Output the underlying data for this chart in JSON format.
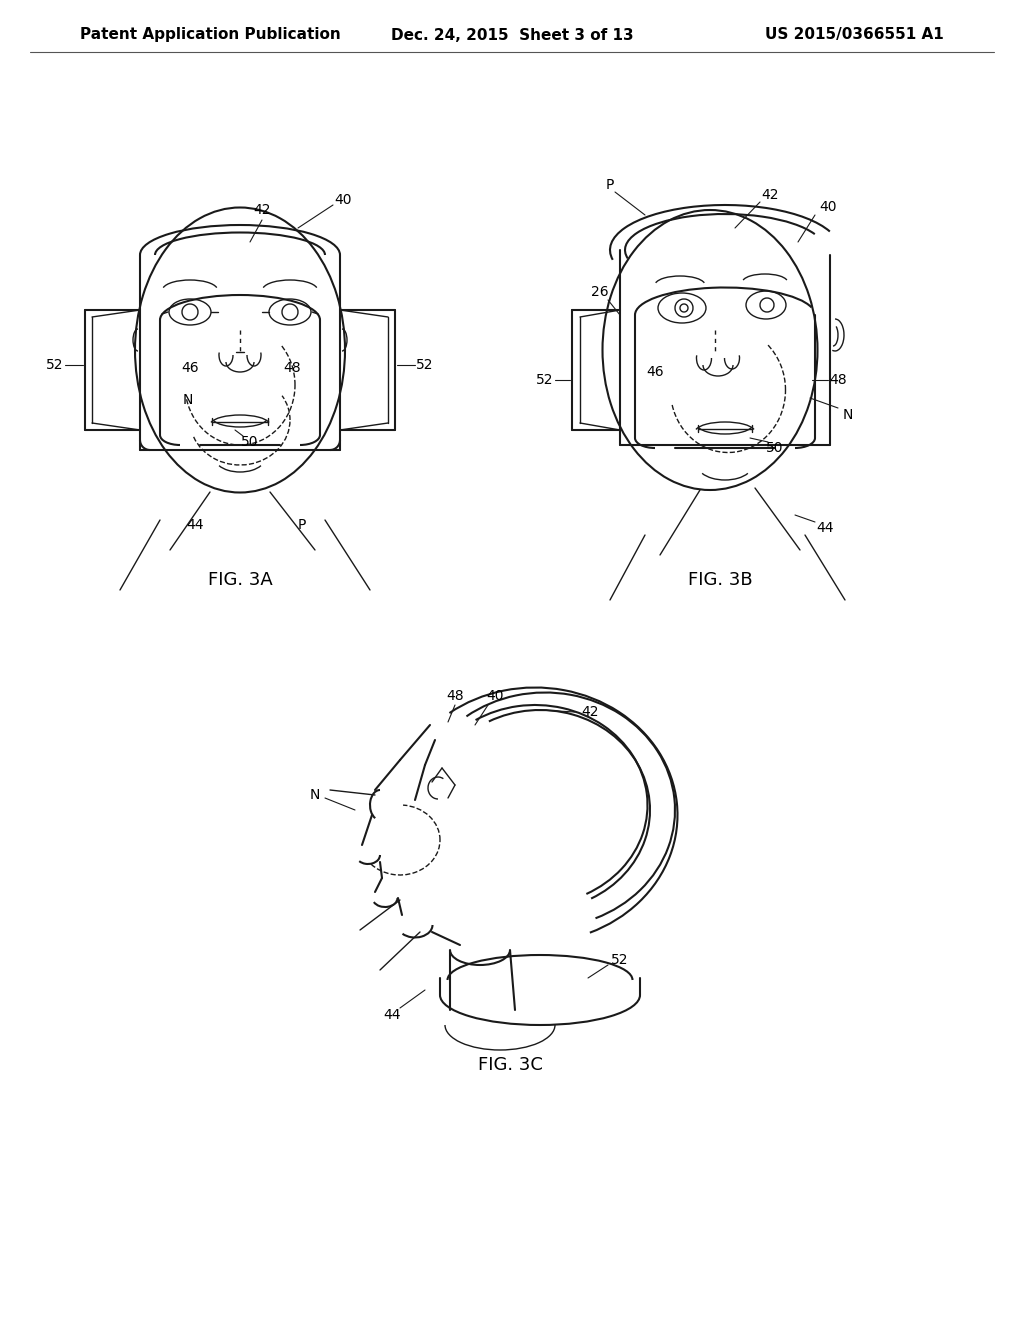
{
  "background_color": "#ffffff",
  "header_left": "Patent Application Publication",
  "header_center": "Dec. 24, 2015  Sheet 3 of 13",
  "header_right": "US 2015/0366551 A1",
  "header_fontsize": 11,
  "line_color": "#1a1a1a",
  "label_fontsize": 10,
  "fig_label_fontsize": 13,
  "fig3a_label": "FIG. 3A",
  "fig3b_label": "FIG. 3B",
  "fig3c_label": "FIG. 3C"
}
